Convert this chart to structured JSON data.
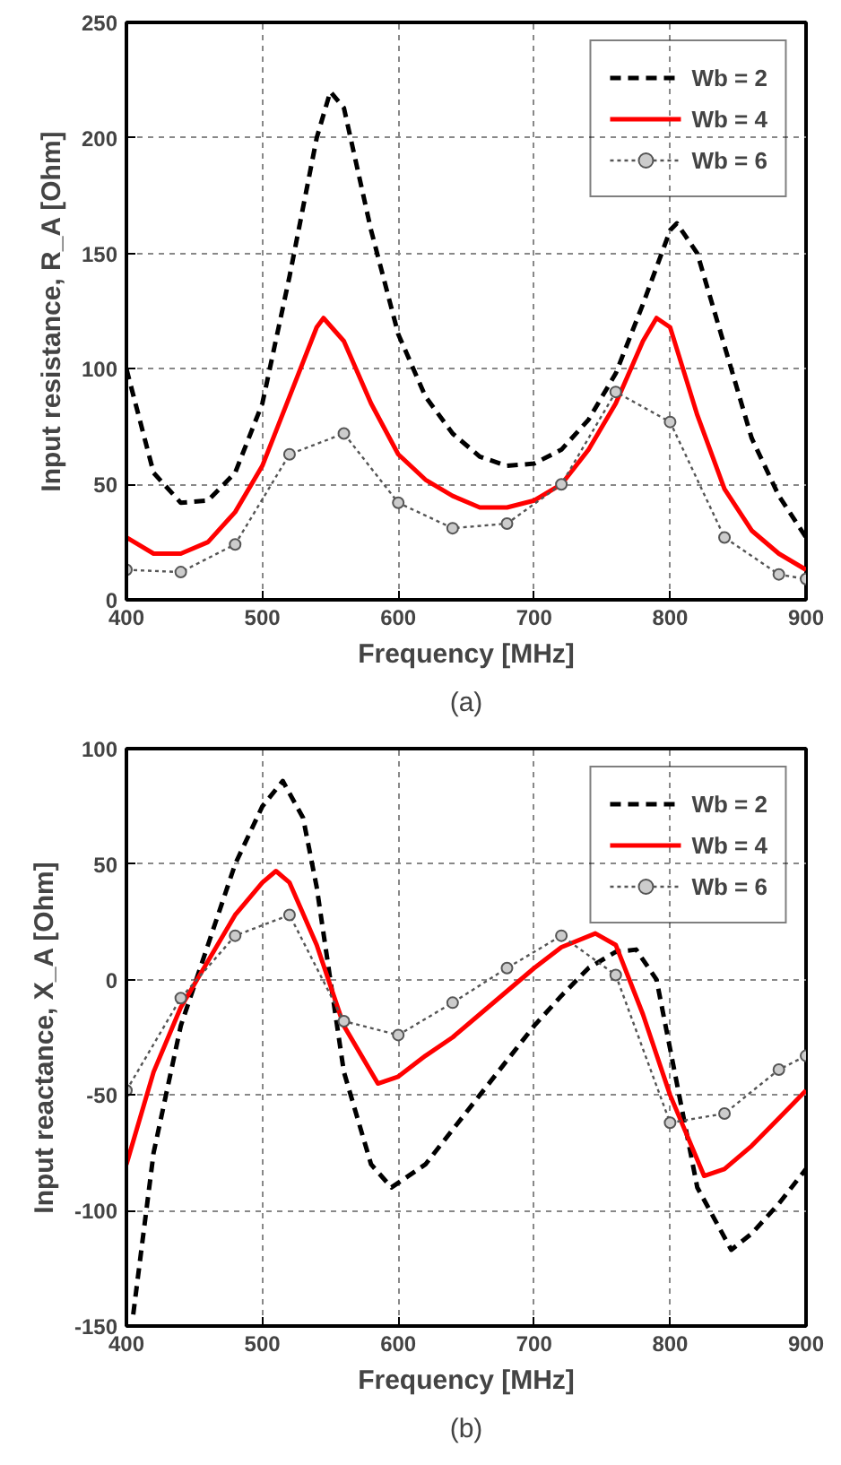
{
  "chart_data": [
    {
      "type": "line",
      "xlabel": "Frequency [MHz]",
      "ylabel": "Input resistance, R_A [Ohm]",
      "annotations": [
        "(a)"
      ],
      "xlim": [
        400,
        900
      ],
      "ylim": [
        0,
        250
      ],
      "xticks": [
        400,
        500,
        600,
        700,
        800,
        900
      ],
      "yticks": [
        0,
        50,
        100,
        150,
        200,
        250
      ],
      "grid": true,
      "legend": "top right",
      "x": [
        400,
        420,
        440,
        460,
        480,
        500,
        520,
        540,
        550,
        560,
        580,
        600,
        620,
        640,
        660,
        680,
        700,
        720,
        740,
        760,
        780,
        800,
        805,
        820,
        840,
        860,
        880,
        900
      ],
      "series": [
        {
          "name": "Wb = 2",
          "color": "#000000",
          "line_style": "dashed",
          "marker": "none",
          "values": [
            100,
            55,
            42,
            43,
            55,
            85,
            140,
            200,
            220,
            213,
            160,
            115,
            88,
            72,
            62,
            58,
            59,
            65,
            78,
            98,
            128,
            160,
            163,
            150,
            110,
            70,
            45,
            27
          ]
        },
        {
          "name": "Wb = 4",
          "color": "#ff0000",
          "line_style": "solid",
          "marker": "none",
          "x": [
            400,
            420,
            440,
            460,
            480,
            500,
            520,
            540,
            545,
            560,
            580,
            600,
            620,
            640,
            660,
            680,
            700,
            720,
            740,
            760,
            780,
            790,
            800,
            820,
            840,
            860,
            880,
            900
          ],
          "values": [
            27,
            20,
            20,
            25,
            38,
            58,
            88,
            118,
            122,
            112,
            85,
            63,
            52,
            45,
            40,
            40,
            43,
            50,
            65,
            85,
            112,
            122,
            118,
            80,
            48,
            30,
            20,
            13
          ]
        },
        {
          "name": "Wb = 6",
          "color": "#555555",
          "line_style": "dotted",
          "marker": "circle",
          "x": [
            400,
            440,
            480,
            520,
            560,
            600,
            640,
            680,
            720,
            760,
            800,
            840,
            880,
            900
          ],
          "values": [
            13,
            12,
            24,
            63,
            72,
            42,
            31,
            33,
            50,
            90,
            77,
            27,
            11,
            9
          ]
        }
      ]
    },
    {
      "type": "line",
      "xlabel": "Frequency [MHz]",
      "ylabel": "Input reactance, X_A [Ohm]",
      "annotations": [
        "(b)"
      ],
      "xlim": [
        400,
        900
      ],
      "ylim": [
        -150,
        100
      ],
      "xticks": [
        400,
        500,
        600,
        700,
        800,
        900
      ],
      "yticks": [
        -150,
        -100,
        -50,
        0,
        50,
        100
      ],
      "grid": true,
      "legend": "top right",
      "x": [
        405,
        420,
        440,
        460,
        480,
        500,
        515,
        530,
        540,
        550,
        560,
        580,
        595,
        620,
        640,
        660,
        680,
        700,
        720,
        740,
        760,
        775,
        790,
        800,
        820,
        845,
        860,
        880,
        900
      ],
      "series": [
        {
          "name": "Wb = 2",
          "color": "#000000",
          "line_style": "dashed",
          "marker": "none",
          "values": [
            -145,
            -75,
            -20,
            15,
            50,
            75,
            86,
            70,
            40,
            0,
            -40,
            -80,
            -90,
            -80,
            -65,
            -50,
            -35,
            -20,
            -7,
            5,
            12,
            13,
            0,
            -30,
            -90,
            -117,
            -110,
            -97,
            -82
          ]
        },
        {
          "name": "Wb = 4",
          "color": "#ff0000",
          "line_style": "solid",
          "marker": "none",
          "x": [
            400,
            420,
            440,
            460,
            480,
            500,
            510,
            520,
            540,
            560,
            585,
            600,
            620,
            640,
            660,
            680,
            700,
            720,
            745,
            760,
            780,
            800,
            825,
            840,
            860,
            880,
            900
          ],
          "values": [
            -80,
            -40,
            -12,
            8,
            28,
            42,
            47,
            42,
            15,
            -20,
            -45,
            -42,
            -33,
            -25,
            -15,
            -5,
            5,
            14,
            20,
            15,
            -15,
            -50,
            -85,
            -82,
            -72,
            -60,
            -48
          ]
        },
        {
          "name": "Wb = 6",
          "color": "#555555",
          "line_style": "dotted",
          "marker": "circle",
          "x": [
            400,
            440,
            480,
            520,
            560,
            600,
            640,
            680,
            720,
            760,
            800,
            840,
            880,
            900
          ],
          "values": [
            -48,
            -8,
            19,
            28,
            -18,
            -24,
            -10,
            5,
            19,
            2,
            -62,
            -58,
            -39,
            -33
          ]
        }
      ]
    }
  ]
}
